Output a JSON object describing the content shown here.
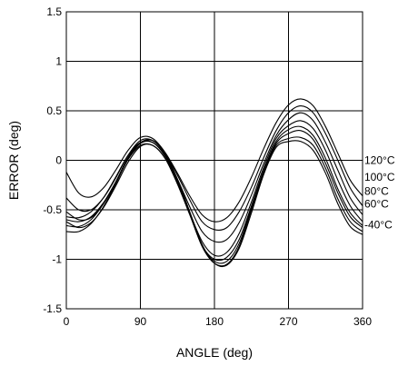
{
  "chart_data": {
    "type": "line",
    "title": "",
    "xlabel": "ANGLE (deg)",
    "ylabel": "ERROR (deg)",
    "xlim": [
      0,
      360
    ],
    "ylim": [
      -1.5,
      1.5
    ],
    "xticks": [
      0,
      90,
      180,
      270,
      360
    ],
    "xtick_labels": [
      "0",
      "90",
      "180",
      "270",
      "360"
    ],
    "yticks": [
      -1.5,
      -1,
      -0.5,
      0,
      0.5,
      1,
      1.5
    ],
    "ytick_labels": [
      "-1.5",
      "-1",
      "-0.5",
      "0",
      "0.5",
      "1",
      "1.5"
    ],
    "grid": true,
    "line_color": "#000000",
    "x": [
      0,
      15,
      30,
      45,
      60,
      75,
      90,
      105,
      120,
      135,
      150,
      165,
      180,
      195,
      210,
      225,
      240,
      255,
      270,
      285,
      300,
      315,
      330,
      345,
      360
    ],
    "series": [
      {
        "values": [
          -0.12,
          -0.33,
          -0.37,
          -0.28,
          -0.1,
          0.1,
          0.23,
          0.22,
          0.08,
          -0.13,
          -0.36,
          -0.55,
          -0.62,
          -0.58,
          -0.42,
          -0.17,
          0.12,
          0.38,
          0.56,
          0.62,
          0.55,
          0.34,
          0.07,
          -0.2,
          -0.36
        ]
      },
      {
        "values": [
          -0.38,
          -0.5,
          -0.5,
          -0.38,
          -0.18,
          0.05,
          0.2,
          0.2,
          0.07,
          -0.15,
          -0.4,
          -0.62,
          -0.7,
          -0.68,
          -0.52,
          -0.27,
          0.03,
          0.3,
          0.48,
          0.55,
          0.48,
          0.27,
          0.0,
          -0.28,
          -0.46
        ]
      },
      {
        "values": [
          -0.52,
          -0.6,
          -0.58,
          -0.44,
          -0.23,
          0.01,
          0.17,
          0.18,
          0.05,
          -0.19,
          -0.47,
          -0.72,
          -0.82,
          -0.8,
          -0.63,
          -0.35,
          -0.03,
          0.25,
          0.41,
          0.48,
          0.4,
          0.18,
          -0.1,
          -0.38,
          -0.55
        ]
      },
      {
        "values": [
          -0.62,
          -0.68,
          -0.63,
          -0.48,
          -0.26,
          -0.02,
          0.14,
          0.15,
          0.02,
          -0.23,
          -0.53,
          -0.82,
          -0.96,
          -0.93,
          -0.74,
          -0.42,
          -0.07,
          0.22,
          0.35,
          0.4,
          0.32,
          0.1,
          -0.2,
          -0.46,
          -0.62
        ]
      },
      {
        "values": [
          -0.6,
          -0.62,
          -0.57,
          -0.43,
          -0.22,
          0.01,
          0.15,
          0.15,
          0.02,
          -0.24,
          -0.55,
          -0.86,
          -1.0,
          -0.98,
          -0.8,
          -0.46,
          -0.1,
          0.19,
          0.31,
          0.34,
          0.25,
          0.02,
          -0.29,
          -0.53,
          -0.66
        ]
      },
      {
        "values": [
          -0.57,
          -0.58,
          -0.52,
          -0.38,
          -0.17,
          0.05,
          0.18,
          0.18,
          0.04,
          -0.22,
          -0.54,
          -0.86,
          -1.02,
          -1.02,
          -0.84,
          -0.48,
          -0.12,
          0.17,
          0.27,
          0.3,
          0.21,
          -0.03,
          -0.33,
          -0.57,
          -0.68
        ]
      },
      {
        "values": [
          -0.66,
          -0.67,
          -0.6,
          -0.44,
          -0.22,
          0.03,
          0.18,
          0.2,
          0.06,
          -0.21,
          -0.54,
          -0.87,
          -1.04,
          -1.05,
          -0.87,
          -0.5,
          -0.12,
          0.15,
          0.22,
          0.23,
          0.15,
          -0.08,
          -0.39,
          -0.62,
          -0.72
        ]
      },
      {
        "values": [
          -0.72,
          -0.72,
          -0.64,
          -0.47,
          -0.24,
          0.02,
          0.17,
          0.2,
          0.07,
          -0.19,
          -0.52,
          -0.85,
          -1.04,
          -1.06,
          -0.89,
          -0.53,
          -0.14,
          0.13,
          0.19,
          0.19,
          0.1,
          -0.13,
          -0.44,
          -0.67,
          -0.75
        ]
      }
    ],
    "annotations": [
      {
        "text": "120°C",
        "y": 0.0
      },
      {
        "text": "100°C",
        "y": -0.17
      },
      {
        "text": "80°C",
        "y": -0.31
      },
      {
        "text": "60°C",
        "y": -0.44
      },
      {
        "text": "-40°C",
        "y": -0.65
      }
    ]
  }
}
